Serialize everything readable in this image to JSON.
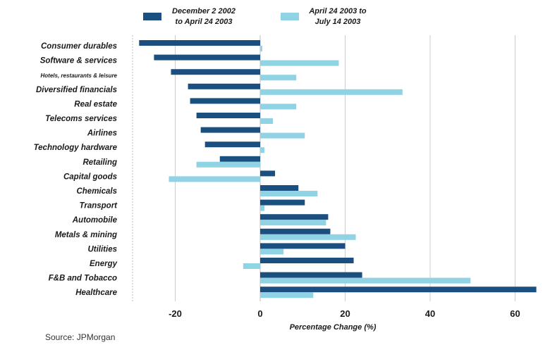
{
  "legend": {
    "items": [
      {
        "lines": [
          "December 2 2002",
          "to April 24 2003"
        ],
        "color": "#1b4f7f"
      },
      {
        "lines": [
          "April 24 2003 to",
          "July 14 2003"
        ],
        "color": "#8fd3e5"
      }
    ]
  },
  "source": "Source: JPMorgan",
  "chart_data": {
    "type": "bar",
    "orientation": "horizontal",
    "categories": [
      "Consumer durables",
      "Software & services",
      "Hotels, restaurants & leisure",
      "Diversified financials",
      "Real estate",
      "Telecoms services",
      "Airlines",
      "Technology hardware",
      "Retailing",
      "Capital goods",
      "Chemicals",
      "Transport",
      "Automobile",
      "Metals & mining",
      "Utilities",
      "Energy",
      "F&B and Tobacco",
      "Healthcare"
    ],
    "series": [
      {
        "name": "December 2 2002 to April 24 2003",
        "color": "#1b4f7f",
        "values": [
          -28.5,
          -25,
          -21,
          -17,
          -16.5,
          -15,
          -14,
          -13,
          -9.5,
          3.5,
          9,
          10.5,
          16,
          16.5,
          20,
          22,
          24,
          65
        ]
      },
      {
        "name": "April 24 2003 to July 14 2003",
        "color": "#8fd3e5",
        "values": [
          0.5,
          18.5,
          8.5,
          33.5,
          8.5,
          3,
          10.5,
          1,
          -15,
          -21.5,
          13.5,
          1,
          15.5,
          22.5,
          5.5,
          -4,
          49.5,
          12.5
        ]
      }
    ],
    "xlabel": "Percentage Change (%)",
    "ylabel": "",
    "xlim": [
      -30,
      66
    ],
    "xticks": [
      -20,
      0,
      20,
      40,
      60
    ],
    "grid": true,
    "legend_position": "top"
  }
}
